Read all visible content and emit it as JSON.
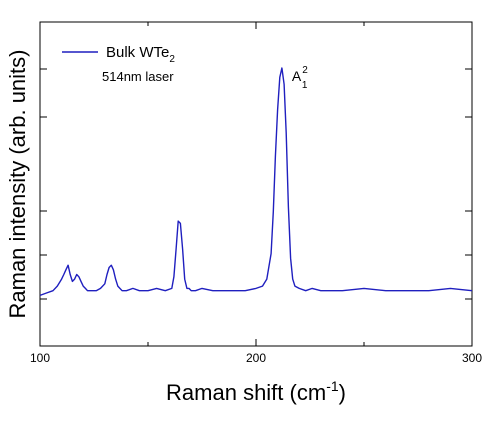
{
  "chart_data": {
    "type": "line",
    "title": "",
    "xlabel_main": "Raman shift (cm",
    "xlabel_sup": "-1",
    "xlabel_end": ")",
    "ylabel": "Raman intensity (arb. units)",
    "xlim": [
      100,
      300
    ],
    "ylim": [
      0,
      1
    ],
    "x_ticks": [
      100,
      200,
      300
    ],
    "grid": false,
    "legend": {
      "placement": "top-left",
      "entries": [
        {
          "base": "Bulk WTe",
          "sub": "2"
        }
      ]
    },
    "annotation": "514nm laser",
    "peak_label": {
      "base": "A",
      "sup": "2",
      "sub": "1",
      "x": 212
    },
    "colors": {
      "line": "#1f1fbf",
      "axis": "#000000"
    },
    "series": [
      {
        "x": [
          100,
          103,
          106,
          108,
          110,
          111,
          112,
          113,
          114,
          115,
          116,
          117,
          118,
          119,
          120,
          121,
          122,
          124,
          126,
          128,
          130,
          131,
          132,
          133,
          134,
          135,
          136,
          137,
          138,
          140,
          143,
          146,
          150,
          154,
          158,
          161,
          162,
          163,
          164,
          165,
          166,
          167,
          168,
          169,
          170,
          172,
          175,
          180,
          185,
          190,
          195,
          200,
          203,
          205,
          207,
          208,
          209,
          210,
          211,
          212,
          213,
          214,
          215,
          216,
          217,
          218,
          220,
          223,
          226,
          230,
          240,
          250,
          260,
          270,
          280,
          290,
          300
        ],
        "y": [
          0.02,
          0.03,
          0.04,
          0.06,
          0.09,
          0.11,
          0.13,
          0.15,
          0.11,
          0.08,
          0.09,
          0.11,
          0.1,
          0.08,
          0.06,
          0.05,
          0.04,
          0.04,
          0.04,
          0.05,
          0.07,
          0.11,
          0.14,
          0.15,
          0.13,
          0.09,
          0.06,
          0.05,
          0.04,
          0.04,
          0.05,
          0.04,
          0.04,
          0.05,
          0.04,
          0.05,
          0.1,
          0.22,
          0.34,
          0.33,
          0.22,
          0.09,
          0.05,
          0.05,
          0.04,
          0.04,
          0.05,
          0.04,
          0.04,
          0.04,
          0.04,
          0.05,
          0.06,
          0.09,
          0.2,
          0.38,
          0.62,
          0.82,
          0.96,
          1.0,
          0.93,
          0.72,
          0.4,
          0.18,
          0.09,
          0.06,
          0.05,
          0.04,
          0.05,
          0.04,
          0.04,
          0.05,
          0.04,
          0.04,
          0.04,
          0.05,
          0.04
        ]
      }
    ]
  }
}
